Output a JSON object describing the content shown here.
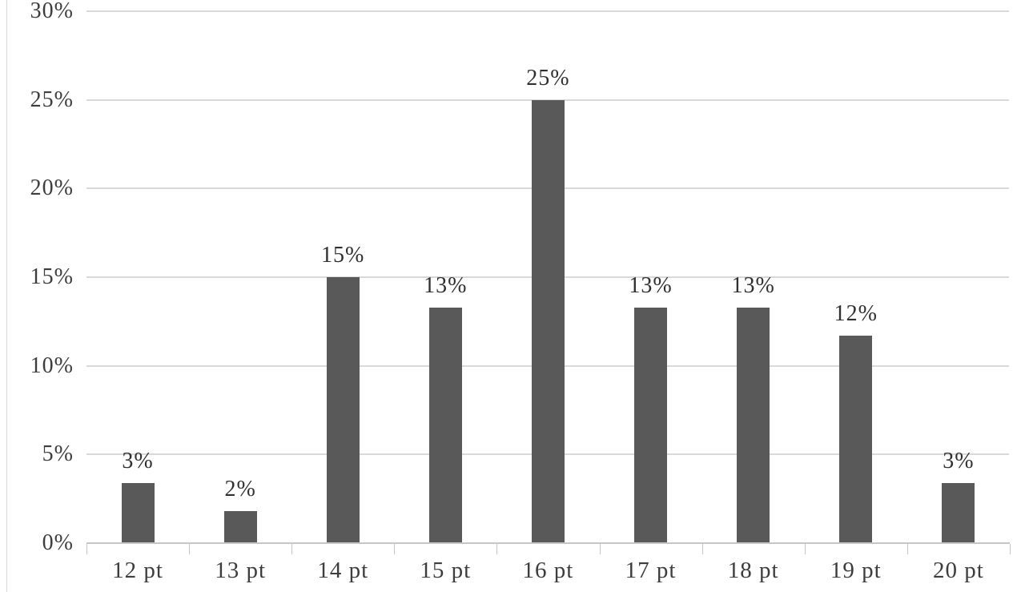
{
  "chart_data": {
    "type": "bar",
    "title": "",
    "xlabel": "",
    "ylabel": "",
    "categories": [
      "12 pt",
      "13 pt",
      "14 pt",
      "15 pt",
      "16 pt",
      "17 pt",
      "18 pt",
      "19 pt",
      "20 pt"
    ],
    "values": [
      3.4,
      1.8,
      15.0,
      13.3,
      25.0,
      13.3,
      13.3,
      11.7,
      3.4
    ],
    "bar_labels": [
      "3%",
      "2%",
      "15%",
      "13%",
      "25%",
      "13%",
      "13%",
      "12%",
      "3%"
    ],
    "ylim": [
      0,
      30
    ],
    "ytick_step": 5,
    "ytick_labels": [
      "0%",
      "5%",
      "10%",
      "15%",
      "20%",
      "25%",
      "30%"
    ],
    "grid": "horizontal",
    "legend": "none",
    "colors": {
      "bar": "#595959",
      "gridline": "#d9d9d9",
      "axis": "#c6c6c6",
      "text": "#3d3d3d",
      "background": "#ffffff"
    }
  }
}
